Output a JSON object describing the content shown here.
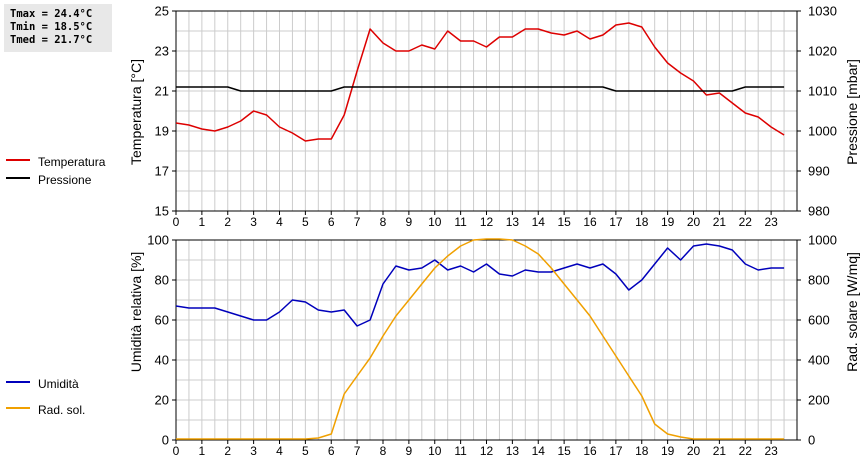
{
  "stats": {
    "tmax": "Tmax = 24.4°C",
    "tmin": "Tmin = 18.5°C",
    "tmed": "Tmed = 21.7°C"
  },
  "colors": {
    "temperature": "#dd0000",
    "pressure": "#000000",
    "humidity": "#0000bb",
    "radiation": "#f0a000",
    "grid": "#cccccc"
  },
  "chart_data": [
    {
      "type": "line",
      "grid": true,
      "legend_position": "left",
      "x_ticks": [
        "0",
        "1",
        "2",
        "3",
        "4",
        "5",
        "6",
        "7",
        "8",
        "9",
        "10",
        "11",
        "12",
        "13",
        "14",
        "15",
        "16",
        "17",
        "18",
        "19",
        "20",
        "21",
        "22",
        "23"
      ],
      "xlim": [
        0,
        24
      ],
      "ylabel_left": "Temperatura [°C]",
      "ylim_left": [
        15,
        25
      ],
      "yticks_left": [
        "15",
        "17",
        "19",
        "21",
        "23",
        "25"
      ],
      "ylabel_right": "Pressione [mbar]",
      "ylim_right": [
        980,
        1030
      ],
      "yticks_right": [
        "980",
        "990",
        "1000",
        "1010",
        "1020",
        "1030"
      ],
      "series": [
        {
          "name": "Temperatura",
          "axis": "left",
          "x": [
            0,
            0.5,
            1,
            1.5,
            2,
            2.5,
            3,
            3.5,
            4,
            4.5,
            5,
            5.5,
            6,
            6.5,
            7,
            7.5,
            8,
            8.5,
            9,
            9.5,
            10,
            10.5,
            11,
            11.5,
            12,
            12.5,
            13,
            13.5,
            14,
            14.5,
            15,
            15.5,
            16,
            16.5,
            17,
            17.5,
            18,
            18.5,
            19,
            19.5,
            20,
            20.5,
            21,
            21.5,
            22,
            22.5,
            23,
            23.5
          ],
          "values": [
            19.4,
            19.3,
            19.1,
            19.0,
            19.2,
            19.5,
            20.0,
            19.8,
            19.2,
            18.9,
            18.5,
            18.6,
            18.6,
            19.8,
            22.0,
            24.1,
            23.4,
            23.0,
            23.0,
            23.3,
            23.1,
            24.0,
            23.5,
            23.5,
            23.2,
            23.7,
            23.7,
            24.1,
            24.1,
            23.9,
            23.8,
            24.0,
            23.6,
            23.8,
            24.3,
            24.4,
            24.2,
            23.2,
            22.4,
            21.9,
            21.5,
            20.8,
            20.9,
            20.4,
            19.9,
            19.7,
            19.2,
            18.8
          ]
        },
        {
          "name": "Pressione",
          "axis": "right",
          "x": [
            0,
            2,
            2.5,
            6,
            6.5,
            16.5,
            17,
            21.5,
            22,
            23.5
          ],
          "values": [
            1011,
            1011,
            1010,
            1010,
            1011,
            1011,
            1010,
            1010,
            1011,
            1011
          ]
        }
      ]
    },
    {
      "type": "line",
      "grid": true,
      "legend_position": "left",
      "x_ticks": [
        "0",
        "1",
        "2",
        "3",
        "4",
        "5",
        "6",
        "7",
        "8",
        "9",
        "10",
        "11",
        "12",
        "13",
        "14",
        "15",
        "16",
        "17",
        "18",
        "19",
        "20",
        "21",
        "22",
        "23"
      ],
      "xlim": [
        0,
        24
      ],
      "ylabel_left": "Umidità relativa [%]",
      "ylim_left": [
        0,
        100
      ],
      "yticks_left": [
        "0",
        "20",
        "40",
        "60",
        "80",
        "100"
      ],
      "ylabel_right": "Rad. solare [W/mq]",
      "ylim_right": [
        0,
        1000
      ],
      "yticks_right": [
        "0",
        "200",
        "400",
        "600",
        "800",
        "1000"
      ],
      "series": [
        {
          "name": "Umidità",
          "axis": "left",
          "x": [
            0,
            0.5,
            1,
            1.5,
            2,
            2.5,
            3,
            3.5,
            4,
            4.5,
            5,
            5.5,
            6,
            6.5,
            7,
            7.5,
            8,
            8.5,
            9,
            9.5,
            10,
            10.5,
            11,
            11.5,
            12,
            12.5,
            13,
            13.5,
            14,
            14.5,
            15,
            15.5,
            16,
            16.5,
            17,
            17.5,
            18,
            18.5,
            19,
            19.5,
            20,
            20.5,
            21,
            21.5,
            22,
            22.5,
            23,
            23.5
          ],
          "values": [
            67,
            66,
            66,
            66,
            64,
            62,
            60,
            60,
            64,
            70,
            69,
            65,
            64,
            65,
            57,
            60,
            78,
            87,
            85,
            86,
            90,
            85,
            87,
            84,
            88,
            83,
            82,
            85,
            84,
            84,
            86,
            88,
            86,
            88,
            83,
            75,
            80,
            88,
            96,
            90,
            97,
            98,
            97,
            95,
            88,
            85,
            86,
            86
          ]
        },
        {
          "name": "Rad. sol.",
          "axis": "right",
          "x": [
            0,
            1,
            2,
            3,
            4,
            5,
            5.5,
            6,
            6.5,
            7,
            7.5,
            8,
            8.5,
            9,
            9.5,
            10,
            10.5,
            11,
            11.5,
            12,
            12.5,
            13,
            13.5,
            14,
            14.5,
            15,
            15.5,
            16,
            16.5,
            17,
            17.5,
            18,
            18.5,
            19,
            19.5,
            20,
            21,
            22,
            23,
            23.5
          ],
          "values": [
            5,
            5,
            5,
            5,
            5,
            5,
            10,
            30,
            230,
            320,
            410,
            520,
            620,
            700,
            780,
            860,
            920,
            970,
            1000,
            1005,
            1005,
            1000,
            970,
            930,
            860,
            780,
            700,
            620,
            520,
            420,
            320,
            220,
            80,
            30,
            15,
            5,
            5,
            5,
            5,
            5
          ]
        }
      ]
    }
  ]
}
